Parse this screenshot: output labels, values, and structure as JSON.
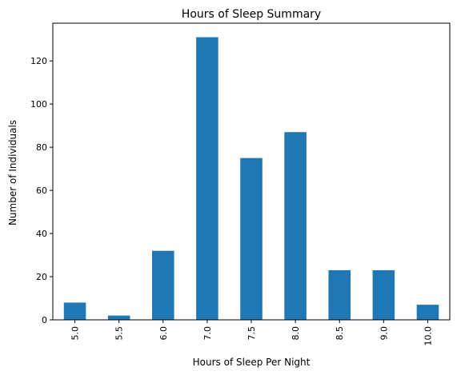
{
  "chart_data": {
    "type": "bar",
    "title": "Hours of Sleep Summary",
    "xlabel": "Hours of Sleep Per Night",
    "ylabel": "Number of Individuals",
    "categories": [
      "5.0",
      "5.5",
      "6.0",
      "7.0",
      "7.5",
      "8.0",
      "8.5",
      "9.0",
      "10.0"
    ],
    "values": [
      8,
      2,
      32,
      131,
      75,
      87,
      23,
      23,
      7
    ],
    "ylim": [
      0,
      137.5
    ],
    "yticks": [
      0,
      20,
      40,
      60,
      80,
      100,
      120
    ],
    "grid": false,
    "legend": "none",
    "bar_color": "#1f77b4",
    "axis_color": "#000000"
  }
}
